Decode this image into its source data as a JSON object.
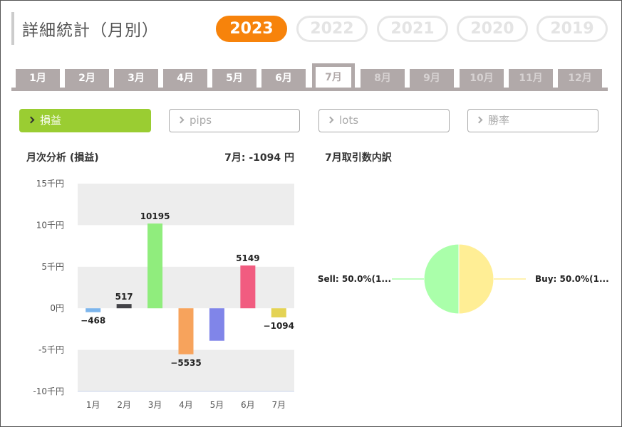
{
  "header": {
    "title": "詳細統計（月別）"
  },
  "years": [
    {
      "label": "2023",
      "active": true
    },
    {
      "label": "2022",
      "active": false
    },
    {
      "label": "2021",
      "active": false
    },
    {
      "label": "2020",
      "active": false
    },
    {
      "label": "2019",
      "active": false
    }
  ],
  "months": [
    {
      "label": "1月",
      "state": "past"
    },
    {
      "label": "2月",
      "state": "past"
    },
    {
      "label": "3月",
      "state": "past"
    },
    {
      "label": "4月",
      "state": "past"
    },
    {
      "label": "5月",
      "state": "past"
    },
    {
      "label": "6月",
      "state": "past"
    },
    {
      "label": "7月",
      "state": "active"
    },
    {
      "label": "8月",
      "state": "future"
    },
    {
      "label": "9月",
      "state": "future"
    },
    {
      "label": "10月",
      "state": "future"
    },
    {
      "label": "11月",
      "state": "future"
    },
    {
      "label": "12月",
      "state": "future"
    }
  ],
  "metrics": [
    {
      "label": "損益",
      "active": true
    },
    {
      "label": "pips",
      "active": false
    },
    {
      "label": "lots",
      "active": false
    },
    {
      "label": "勝率",
      "active": false
    }
  ],
  "analysis": {
    "title": "月次分析 (損益)",
    "summary": "7月:  -1094 円"
  },
  "breakdown": {
    "title": "7月取引数内訳"
  },
  "colors": {
    "accent": "#f7830b",
    "metric_active": "#9acd32",
    "tab_bar": "#b1a9a9"
  },
  "chart_data": [
    {
      "type": "bar",
      "categories": [
        "1月",
        "2月",
        "3月",
        "4月",
        "5月",
        "6月",
        "7月"
      ],
      "values": [
        -468,
        517,
        10195,
        -5535,
        -3900,
        5149,
        -1094
      ],
      "data_labels": [
        "-468",
        "517",
        "10195",
        "-5535",
        "",
        "5149",
        "-1094"
      ],
      "colors": [
        "#7cb5ec",
        "#434348",
        "#90ed7d",
        "#f7a35c",
        "#8085e9",
        "#f15c80",
        "#e4d354"
      ],
      "ylim": [
        -10000,
        15000
      ],
      "yticks": [
        15000,
        10000,
        5000,
        0,
        -5000,
        -10000
      ],
      "ytick_labels": [
        "15千円",
        "10千円",
        "5千円",
        "0円",
        "-5千円",
        "-10千円"
      ],
      "grid": "alternating bands",
      "legend": "none"
    },
    {
      "type": "pie",
      "slices": [
        {
          "label": "Sell: 50.0%(1...",
          "value": 50.0,
          "color": "#aaffaa"
        },
        {
          "label": "Buy: 50.0%(1...",
          "value": 50.0,
          "color": "#ffee95"
        }
      ]
    }
  ]
}
